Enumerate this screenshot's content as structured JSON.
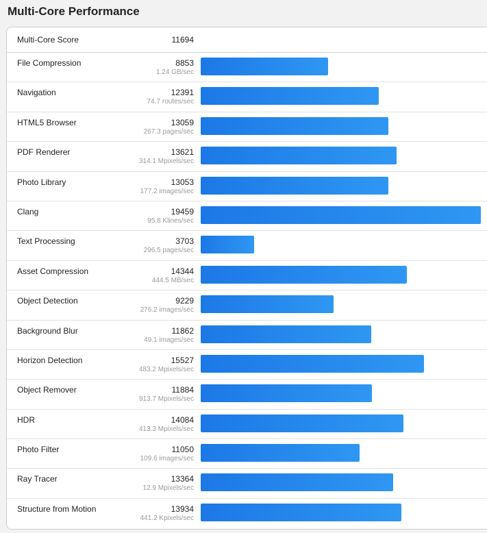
{
  "header": {
    "title": "Multi-Core Performance"
  },
  "overall": {
    "label": "Multi-Core Score",
    "score": "11694"
  },
  "scale_max": 19459,
  "colors": {
    "bar_start": "#1c78e6",
    "bar_end": "#2f97f2"
  },
  "benchmarks": [
    {
      "name": "File Compression",
      "score": "8853",
      "rate": "1.24 GB/sec",
      "value": 8853
    },
    {
      "name": "Navigation",
      "score": "12391",
      "rate": "74.7 routes/sec",
      "value": 12391
    },
    {
      "name": "HTML5 Browser",
      "score": "13059",
      "rate": "267.3 pages/sec",
      "value": 13059
    },
    {
      "name": "PDF Renderer",
      "score": "13621",
      "rate": "314.1 Mpixels/sec",
      "value": 13621
    },
    {
      "name": "Photo Library",
      "score": "13053",
      "rate": "177.2 images/sec",
      "value": 13053
    },
    {
      "name": "Clang",
      "score": "19459",
      "rate": "95.8 Klines/sec",
      "value": 19459
    },
    {
      "name": "Text Processing",
      "score": "3703",
      "rate": "296.5 pages/sec",
      "value": 3703
    },
    {
      "name": "Asset Compression",
      "score": "14344",
      "rate": "444.5 MB/sec",
      "value": 14344
    },
    {
      "name": "Object Detection",
      "score": "9229",
      "rate": "276.2 images/sec",
      "value": 9229
    },
    {
      "name": "Background Blur",
      "score": "11862",
      "rate": "49.1 images/sec",
      "value": 11862
    },
    {
      "name": "Horizon Detection",
      "score": "15527",
      "rate": "483.2 Mpixels/sec",
      "value": 15527
    },
    {
      "name": "Object Remover",
      "score": "11884",
      "rate": "913.7 Mpixels/sec",
      "value": 11884
    },
    {
      "name": "HDR",
      "score": "14084",
      "rate": "413.3 Mpixels/sec",
      "value": 14084
    },
    {
      "name": "Photo Filter",
      "score": "11050",
      "rate": "109.6 images/sec",
      "value": 11050
    },
    {
      "name": "Ray Tracer",
      "score": "13364",
      "rate": "12.9 Mpixels/sec",
      "value": 13364
    },
    {
      "name": "Structure from Motion",
      "score": "13934",
      "rate": "441.2 Kpixels/sec",
      "value": 13934
    }
  ]
}
